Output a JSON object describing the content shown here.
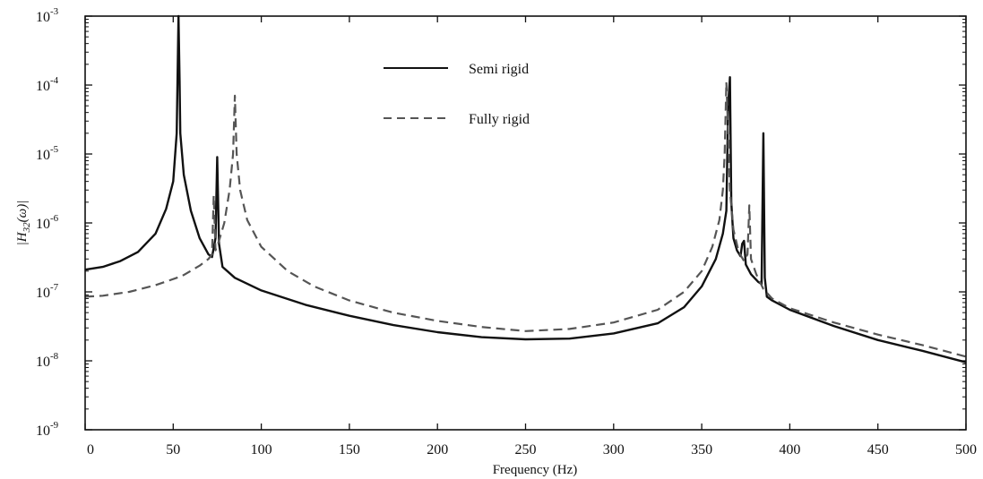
{
  "chart_data": {
    "type": "line",
    "title": "",
    "xlabel": "Frequency (Hz)",
    "ylabel": "|H32(ω)|",
    "ylabel_parts": {
      "main": "|H",
      "sub": "32",
      "tail": "(ω)|"
    },
    "xlim": [
      0,
      500
    ],
    "ylim": [
      1e-09,
      0.001
    ],
    "y_scale": "log",
    "grid": false,
    "legend_position": "top-center",
    "x_ticks": [
      {
        "value": 0,
        "label": "0"
      },
      {
        "value": 50,
        "label": "50"
      },
      {
        "value": 100,
        "label": "100"
      },
      {
        "value": 150,
        "label": "150"
      },
      {
        "value": 200,
        "label": "200"
      },
      {
        "value": 250,
        "label": "250"
      },
      {
        "value": 300,
        "label": "300"
      },
      {
        "value": 350,
        "label": "350"
      },
      {
        "value": 400,
        "label": "400"
      },
      {
        "value": 450,
        "label": "450"
      },
      {
        "value": 500,
        "label": "500"
      }
    ],
    "y_ticks": [
      {
        "value": 0.001,
        "base": "10",
        "exp": "-3"
      },
      {
        "value": 0.0001,
        "base": "10",
        "exp": "-4"
      },
      {
        "value": 1e-05,
        "base": "10",
        "exp": "-5"
      },
      {
        "value": 1e-06,
        "base": "10",
        "exp": "-6"
      },
      {
        "value": 1e-07,
        "base": "10",
        "exp": "-7"
      },
      {
        "value": 1e-08,
        "base": "10",
        "exp": "-8"
      },
      {
        "value": 1e-09,
        "base": "10",
        "exp": "-9"
      }
    ],
    "series": [
      {
        "name": "Semi rigid",
        "style": "solid",
        "color": "#111111",
        "points": [
          [
            0,
            2.1e-07
          ],
          [
            10,
            2.3e-07
          ],
          [
            20,
            2.8e-07
          ],
          [
            30,
            3.8e-07
          ],
          [
            40,
            7e-07
          ],
          [
            46,
            1.6e-06
          ],
          [
            50,
            4e-06
          ],
          [
            52,
            2e-05
          ],
          [
            53,
            0.001
          ],
          [
            53.6,
            0.00012
          ],
          [
            54,
            2e-05
          ],
          [
            56,
            5e-06
          ],
          [
            60,
            1.5e-06
          ],
          [
            65,
            6e-07
          ],
          [
            70,
            3.5e-07
          ],
          [
            72,
            3.2e-07
          ],
          [
            74,
            6e-07
          ],
          [
            75,
            9e-06
          ],
          [
            76,
            5e-07
          ],
          [
            78,
            2.3e-07
          ],
          [
            85,
            1.6e-07
          ],
          [
            100,
            1.05e-07
          ],
          [
            125,
            6.5e-08
          ],
          [
            150,
            4.5e-08
          ],
          [
            175,
            3.3e-08
          ],
          [
            200,
            2.6e-08
          ],
          [
            225,
            2.2e-08
          ],
          [
            250,
            2.05e-08
          ],
          [
            275,
            2.1e-08
          ],
          [
            300,
            2.5e-08
          ],
          [
            325,
            3.5e-08
          ],
          [
            340,
            6e-08
          ],
          [
            350,
            1.2e-07
          ],
          [
            358,
            3e-07
          ],
          [
            362,
            7e-07
          ],
          [
            364,
            1.5e-06
          ],
          [
            365,
            5e-05
          ],
          [
            366,
            0.00013
          ],
          [
            366.8,
            2e-06
          ],
          [
            368,
            6e-07
          ],
          [
            370,
            4e-07
          ],
          [
            372,
            3.3e-07
          ],
          [
            373,
            5e-07
          ],
          [
            374,
            5.5e-07
          ],
          [
            375,
            2.5e-07
          ],
          [
            378,
            1.8e-07
          ],
          [
            382,
            1.4e-07
          ],
          [
            384,
            1.3e-07
          ],
          [
            385,
            2e-05
          ],
          [
            385.8,
            1.6e-07
          ],
          [
            387,
            8.5e-08
          ],
          [
            390,
            7.5e-08
          ],
          [
            400,
            5.5e-08
          ],
          [
            425,
            3.2e-08
          ],
          [
            450,
            2e-08
          ],
          [
            475,
            1.4e-08
          ],
          [
            500,
            9.5e-09
          ]
        ]
      },
      {
        "name": "Fully rigid",
        "style": "dashed",
        "color": "#555555",
        "points": [
          [
            0,
            8.5e-08
          ],
          [
            10,
            8.8e-08
          ],
          [
            25,
            1e-07
          ],
          [
            40,
            1.25e-07
          ],
          [
            55,
            1.7e-07
          ],
          [
            65,
            2.4e-07
          ],
          [
            70,
            3e-07
          ],
          [
            72,
            3.5e-07
          ],
          [
            73,
            2.5e-06
          ],
          [
            74,
            4e-07
          ],
          [
            76,
            5.5e-07
          ],
          [
            79,
            1e-06
          ],
          [
            82,
            3e-06
          ],
          [
            84,
            1e-05
          ],
          [
            85,
            7e-05
          ],
          [
            86,
            1e-05
          ],
          [
            88,
            3e-06
          ],
          [
            92,
            1.1e-06
          ],
          [
            100,
            4.5e-07
          ],
          [
            115,
            2e-07
          ],
          [
            130,
            1.2e-07
          ],
          [
            150,
            7.5e-08
          ],
          [
            175,
            5e-08
          ],
          [
            200,
            3.8e-08
          ],
          [
            225,
            3.1e-08
          ],
          [
            250,
            2.7e-08
          ],
          [
            275,
            2.9e-08
          ],
          [
            300,
            3.6e-08
          ],
          [
            325,
            5.5e-08
          ],
          [
            340,
            1e-07
          ],
          [
            350,
            2e-07
          ],
          [
            356,
            4.5e-07
          ],
          [
            360,
            1.1e-06
          ],
          [
            362,
            3e-06
          ],
          [
            363,
            1e-05
          ],
          [
            364,
            0.00011
          ],
          [
            365,
            2e-05
          ],
          [
            366,
            3e-06
          ],
          [
            368,
            8e-07
          ],
          [
            371,
            3.8e-07
          ],
          [
            374,
            2.8e-07
          ],
          [
            376,
            3.5e-07
          ],
          [
            377,
            1.8e-06
          ],
          [
            378,
            3e-07
          ],
          [
            381,
            1.8e-07
          ],
          [
            385,
            1.1e-07
          ],
          [
            390,
            8e-08
          ],
          [
            400,
            5.8e-08
          ],
          [
            425,
            3.6e-08
          ],
          [
            450,
            2.4e-08
          ],
          [
            475,
            1.7e-08
          ],
          [
            500,
            1.15e-08
          ]
        ]
      }
    ]
  }
}
